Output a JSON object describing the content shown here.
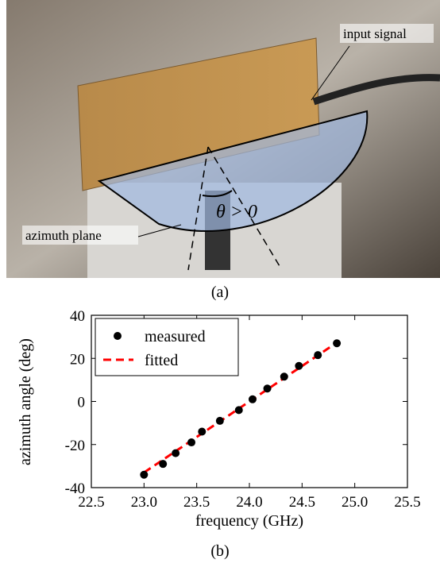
{
  "figure": {
    "photo_labels": {
      "input": "input signal",
      "plane": "azimuth plane",
      "angle": "θ > 0"
    },
    "captions": [
      "(a)",
      "(b)"
    ]
  },
  "chart_data": {
    "type": "scatter",
    "xlabel": "frequency (GHz)",
    "ylabel": "azimuth angle (deg)",
    "xlim": [
      22.5,
      25.5
    ],
    "ylim": [
      -40,
      40
    ],
    "xticks": [
      22.5,
      {
        "value": 23,
        "label": "23.0"
      },
      23.5,
      {
        "value": 24,
        "label": "24.0"
      },
      24.5,
      {
        "value": 25,
        "label": "25.0"
      },
      25.5
    ],
    "yticks": [
      -40,
      -20,
      0,
      20,
      40
    ],
    "legend": "upper left",
    "series": [
      {
        "name": "measured",
        "color": "#000000",
        "style": "marker",
        "x": [
          23.0,
          23.18,
          23.3,
          23.45,
          23.55,
          23.72,
          23.9,
          24.03,
          24.17,
          24.33,
          24.47,
          24.65,
          24.83
        ],
        "values": [
          -34,
          -29,
          -24,
          -19,
          -14,
          -9,
          -4,
          1,
          6,
          11.5,
          16.5,
          21.5,
          27
        ]
      },
      {
        "name": "fitted",
        "color": "#ff0000",
        "style": "dashed",
        "x": [
          23.0,
          24.85
        ],
        "values": [
          -33,
          28
        ]
      }
    ]
  }
}
